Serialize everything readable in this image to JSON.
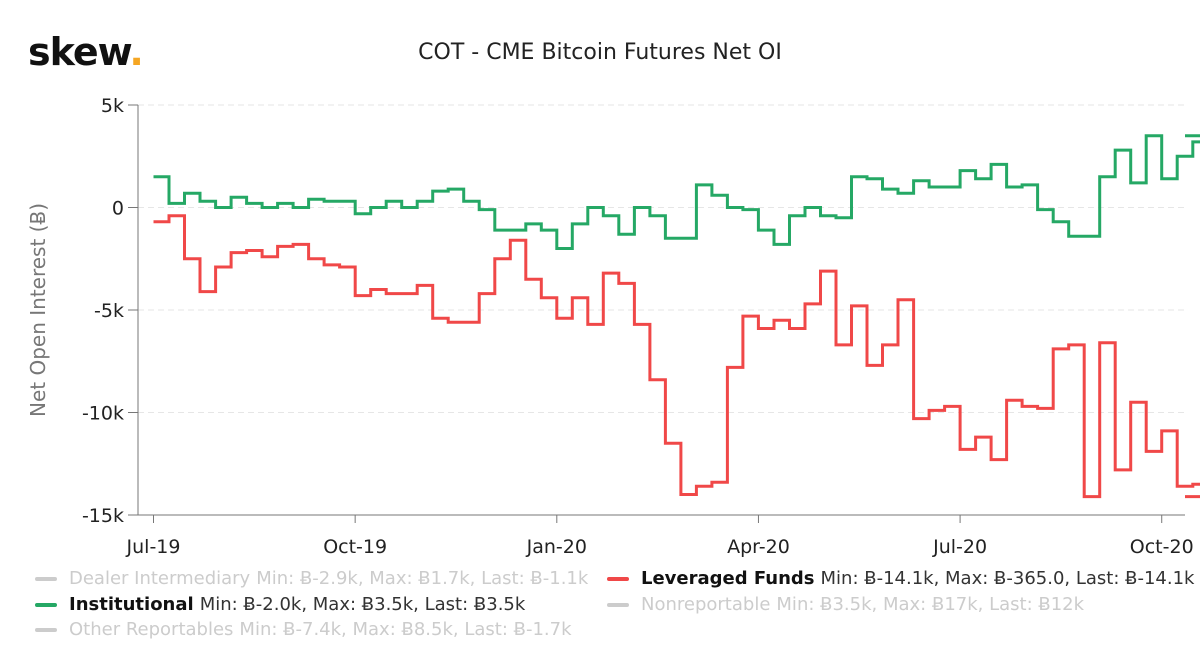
{
  "brand": {
    "name": "skew",
    "dot": "."
  },
  "chart_data": {
    "type": "line",
    "step": true,
    "title": "COT - CME Bitcoin Futures Net OI",
    "xlabel": "",
    "ylabel": "Net Open Interest (Ƀ)",
    "ylim": [
      -15000,
      5000
    ],
    "yticks": [
      5000,
      0,
      -5000,
      -10000,
      -15000
    ],
    "ytick_labels": [
      "΀5k",
      "΀0",
      "΀-5k",
      "΀-10k",
      "΀-15k"
    ],
    "x_ticks": [
      {
        "label": "Jul-19",
        "week": 0
      },
      {
        "label": "Oct-19",
        "week": 13
      },
      {
        "label": "Jan-20",
        "week": 26
      },
      {
        "label": "Apr-20",
        "week": 39
      },
      {
        "label": "Jul-20",
        "week": 52
      },
      {
        "label": "Oct-20",
        "week": 65
      }
    ],
    "x_range_weeks": [
      -1,
      66.5
    ],
    "grid": true,
    "series": [
      {
        "name": "Leveraged Funds",
        "color": "#f04848",
        "values": [
          -700,
          -400,
          -2500,
          -4100,
          -2900,
          -2200,
          -2100,
          -2400,
          -1900,
          -1800,
          -2500,
          -2800,
          -2900,
          -4300,
          -4000,
          -4200,
          -4200,
          -3800,
          -5400,
          -5600,
          -5600,
          -4200,
          -2500,
          -1600,
          -3500,
          -4400,
          -5400,
          -4400,
          -5700,
          -3200,
          -3700,
          -5700,
          -8400,
          -11500,
          -14000,
          -13600,
          -13400,
          -7800,
          -5300,
          -5900,
          -5500,
          -5900,
          -4700,
          -3100,
          -6700,
          -4800,
          -7700,
          -6700,
          -4500,
          -10300,
          -9900,
          -9700,
          -11800,
          -11200,
          -12300,
          -9400,
          -9700,
          -9800,
          -6900,
          -6700,
          -14100,
          -6600,
          -12800,
          -9500,
          -11900,
          -10900,
          -13600,
          -13500,
          -14100
        ]
      },
      {
        "name": "Institutional",
        "color": "#25a865",
        "values": [
          1500,
          200,
          700,
          300,
          0,
          500,
          200,
          0,
          200,
          0,
          400,
          300,
          300,
          -300,
          0,
          300,
          0,
          300,
          800,
          900,
          300,
          -100,
          -1100,
          -1100,
          -800,
          -1100,
          -2000,
          -800,
          0,
          -400,
          -1300,
          0,
          -400,
          -1500,
          -1500,
          1100,
          600,
          0,
          -100,
          -1100,
          -1800,
          -400,
          0,
          -400,
          -500,
          1500,
          1400,
          900,
          700,
          1300,
          1000,
          1000,
          1800,
          1400,
          2100,
          1000,
          1100,
          -100,
          -700,
          -1400,
          -1400,
          1500,
          2800,
          1200,
          3500,
          1400,
          2500,
          3200,
          3500
        ]
      }
    ]
  },
  "legend": [
    {
      "name": "Dealer Intermediary",
      "stats": "Min: Ƀ-2.9k, Max: Ƀ1.7k, Last: Ƀ-1.1k",
      "active": false,
      "color": "#cccccc"
    },
    {
      "name": "Leveraged Funds",
      "stats": "Min: Ƀ-14.1k, Max: Ƀ-365.0, Last: Ƀ-14.1k",
      "active": true,
      "color": "#f04848"
    },
    {
      "name": "Institutional",
      "stats": "Min: Ƀ-2.0k, Max: Ƀ3.5k, Last: Ƀ3.5k",
      "active": true,
      "color": "#25a865"
    },
    {
      "name": "Nonreportable",
      "stats": "Min: Ƀ3.5k, Max: Ƀ17k, Last: Ƀ12k",
      "active": false,
      "color": "#cccccc"
    },
    {
      "name": "Other Reportables",
      "stats": "Min: Ƀ-7.4k, Max: Ƀ8.5k, Last: Ƀ-1.7k",
      "active": false,
      "color": "#cccccc"
    }
  ]
}
